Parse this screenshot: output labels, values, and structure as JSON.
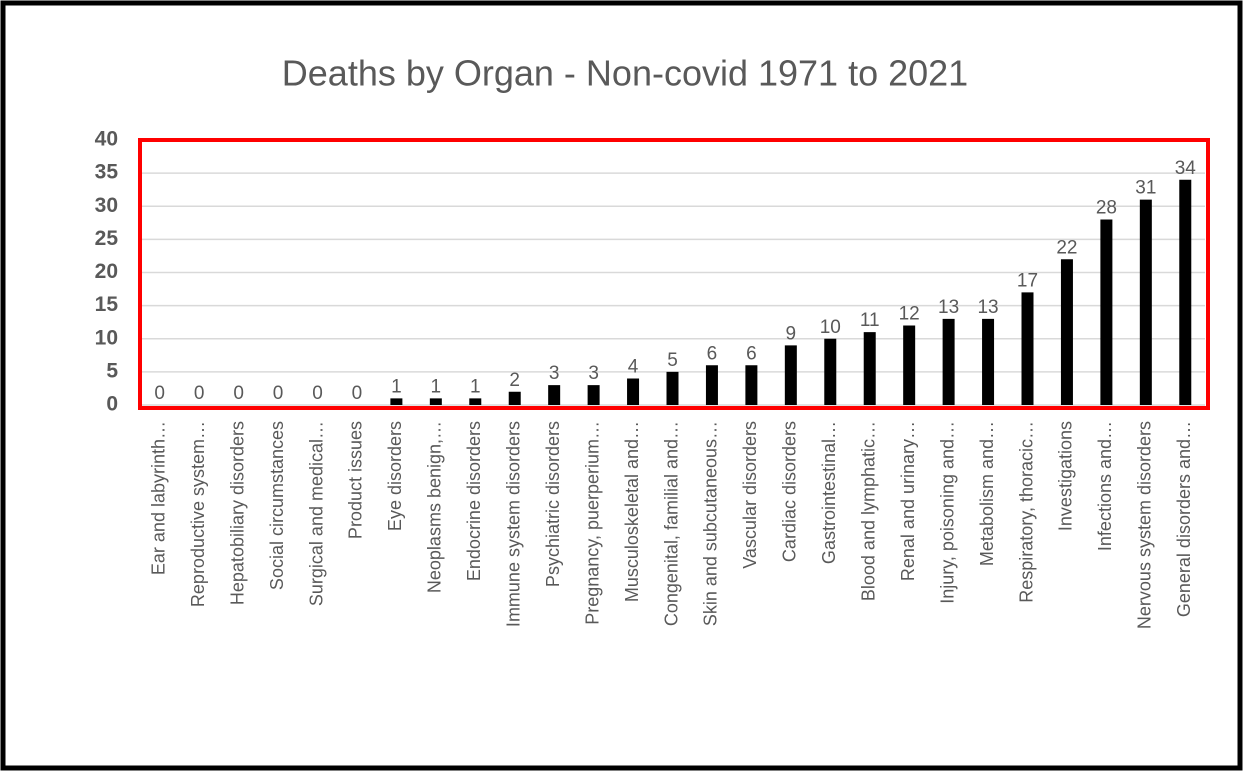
{
  "chart_data": {
    "type": "bar",
    "title": "Deaths by Organ - Non-covid 1971 to 2021",
    "categories": [
      "Ear and labyrinth…",
      "Reproductive system…",
      "Hepatobiliary disorders",
      "Social circumstances",
      "Surgical and medical…",
      "Product issues",
      "Eye disorders",
      "Neoplasms benign,…",
      "Endocrine disorders",
      "Immune system disorders",
      "Psychiatric disorders",
      "Pregnancy, puerperium…",
      "Musculoskeletal and…",
      "Congenital, familial and…",
      "Skin and subcutaneous…",
      "Vascular disorders",
      "Cardiac disorders",
      "Gastrointestinal…",
      "Blood and lymphatic…",
      "Renal and urinary…",
      "Injury, poisoning and…",
      "Metabolism and…",
      "Respiratory, thoracic…",
      "Investigations",
      "Infections and…",
      "Nervous system disorders",
      "General disorders and…"
    ],
    "values": [
      0,
      0,
      0,
      0,
      0,
      0,
      1,
      1,
      1,
      2,
      3,
      3,
      4,
      5,
      6,
      6,
      9,
      10,
      11,
      12,
      13,
      13,
      17,
      22,
      28,
      31,
      34
    ],
    "color": "#000000",
    "ylim": [
      0,
      40
    ],
    "yticks": [
      0,
      5,
      10,
      15,
      20,
      25,
      30,
      35,
      40
    ],
    "grid": true
  }
}
